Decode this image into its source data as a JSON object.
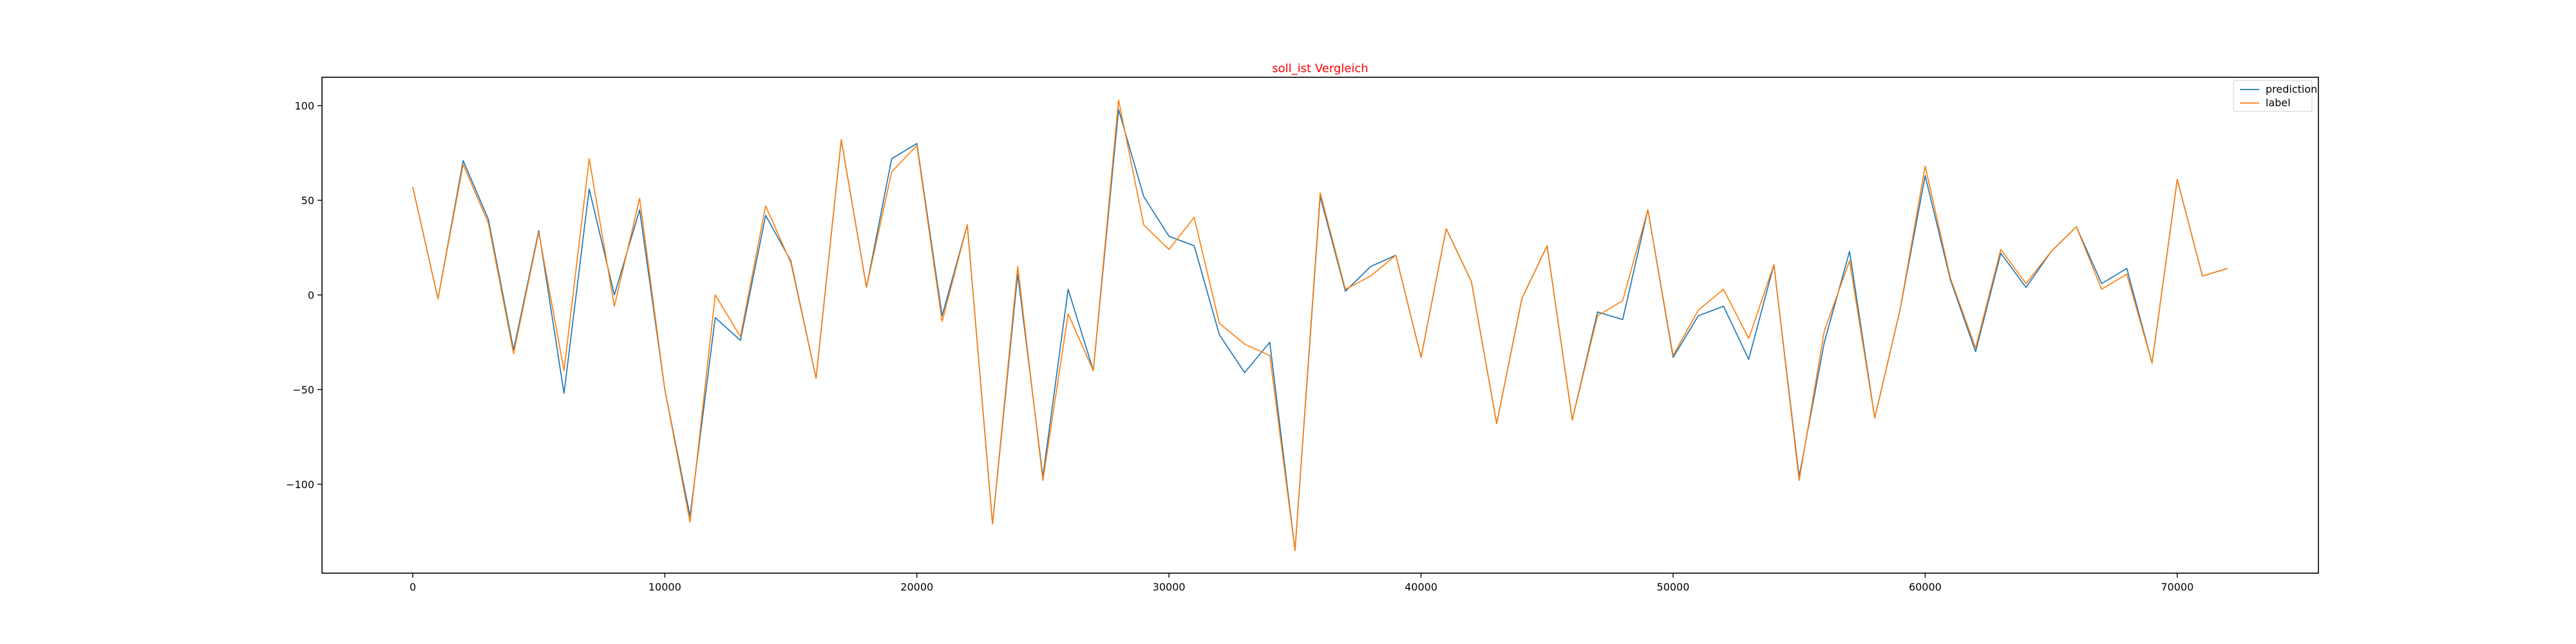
{
  "chart_data": {
    "type": "line",
    "title": "soll_ist Vergleich",
    "title_color": "#ff0000",
    "xlabel": "",
    "ylabel": "",
    "xlim": [
      -3600,
      75600
    ],
    "ylim": [
      -147,
      115
    ],
    "xticks": [
      0,
      10000,
      20000,
      30000,
      40000,
      50000,
      60000,
      70000
    ],
    "xtick_labels": [
      "0",
      "10000",
      "20000",
      "30000",
      "40000",
      "50000",
      "60000",
      "70000"
    ],
    "yticks": [
      100,
      50,
      0,
      -50,
      -100
    ],
    "ytick_labels": [
      "100",
      "50",
      "0",
      "−50",
      "−100"
    ],
    "grid": false,
    "legend_position": "top-right",
    "x": [
      0,
      1000,
      2000,
      3000,
      4000,
      5000,
      6000,
      7000,
      8000,
      9000,
      10000,
      11000,
      12000,
      13000,
      14000,
      15000,
      16000,
      17000,
      18000,
      19000,
      20000,
      21000,
      22000,
      23000,
      24000,
      25000,
      26000,
      27000,
      28000,
      29000,
      30000,
      31000,
      32000,
      33000,
      34000,
      35000,
      36000,
      37000,
      38000,
      39000,
      40000,
      41000,
      42000,
      43000,
      44000,
      45000,
      46000,
      47000,
      48000,
      49000,
      50000,
      51000,
      52000,
      53000,
      54000,
      55000,
      56000,
      57000,
      58000,
      59000,
      60000,
      61000,
      62000,
      63000,
      64000,
      65000,
      66000,
      67000,
      68000,
      69000,
      70000,
      71000,
      72000
    ],
    "series": [
      {
        "name": "prediction",
        "color": "#1f77b4",
        "values": [
          57,
          -2,
          71,
          40,
          -29,
          34,
          -52,
          56,
          0,
          45,
          -50,
          -117,
          -12,
          -24,
          42,
          18,
          -44,
          82,
          4,
          72,
          80,
          -11,
          37,
          -121,
          11,
          -96,
          3,
          -40,
          98,
          52,
          31,
          26,
          -21,
          -41,
          -25,
          -135,
          52,
          2,
          15,
          21,
          -33,
          35,
          7,
          -68,
          -2,
          26,
          -66,
          -9,
          -13,
          45,
          -33,
          -11,
          -6,
          -34,
          16,
          -96,
          -25,
          23,
          -65,
          -8,
          63,
          8,
          -30,
          22,
          4,
          23,
          36,
          6,
          14,
          -36,
          61,
          10,
          14
        ]
      },
      {
        "name": "label",
        "color": "#ff7f0e",
        "values": [
          57,
          -2,
          69,
          38,
          -31,
          33,
          -40,
          72,
          -6,
          51,
          -50,
          -120,
          0,
          -22,
          47,
          17,
          -44,
          82,
          4,
          65,
          79,
          -14,
          37,
          -121,
          15,
          -98,
          -10,
          -40,
          103,
          37,
          24,
          41,
          -15,
          -26,
          -32,
          -135,
          54,
          3,
          10,
          21,
          -33,
          35,
          7,
          -68,
          -2,
          26,
          -66,
          -11,
          -3,
          45,
          -32,
          -8,
          3,
          -23,
          16,
          -98,
          -19,
          18,
          -65,
          -8,
          68,
          9,
          -28,
          24,
          6,
          23,
          36,
          3,
          11,
          -36,
          61,
          10,
          14
        ]
      }
    ]
  }
}
